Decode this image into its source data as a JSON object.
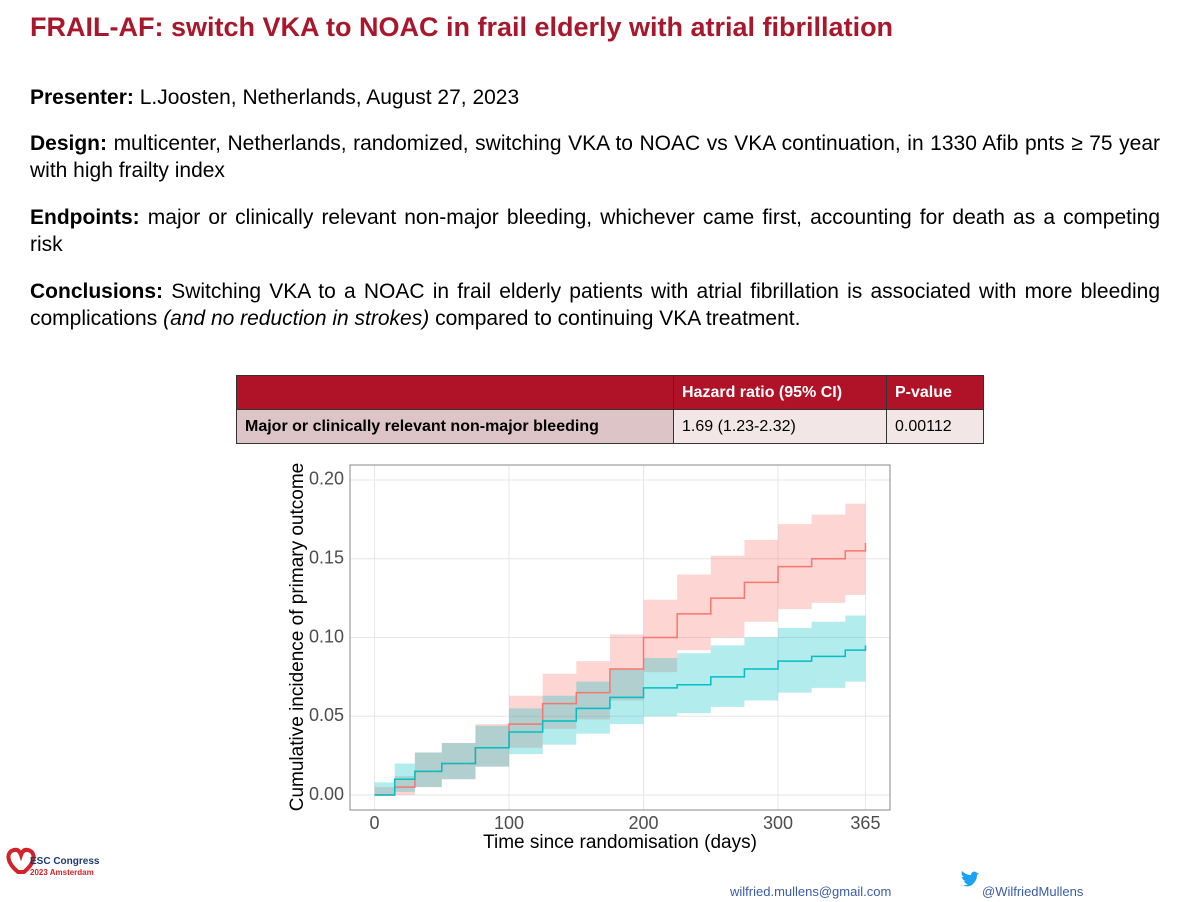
{
  "header": {
    "title": "FRAIL-AF: switch VKA to NOAC in frail elderly with atrial fibrillation"
  },
  "sections": [
    {
      "label": "Presenter:",
      "text": "L.Joosten, Netherlands, August 27, 2023"
    },
    {
      "label": "Design:",
      "text": "multicenter, Netherlands, randomized, switching VKA to NOAC vs VKA continuation, in 1330 Afib pnts ≥ 75 year with high frailty index"
    },
    {
      "label": "Endpoints:",
      "text": "major or clinically relevant non-major bleeding, whichever came first, accounting for death as a competing risk"
    },
    {
      "label": "Conclusions:",
      "text": "Switching VKA to a NOAC in frail elderly patients with atrial fibrillation is associated with more bleeding complications",
      "italic": "(and no reduction in strokes)",
      "text_after": "compared to continuing VKA treatment."
    }
  ],
  "table": {
    "header": [
      "Hazard ratio (95% CI)",
      "P-value"
    ],
    "rows": [
      [
        "Major or clinically relevant non-major bleeding",
        "1.69 (1.23-2.32)",
        "0.00112"
      ]
    ]
  },
  "chart_data": {
    "type": "step",
    "xlabel": "Time since randomisation (days)",
    "ylabel": "Cumulative incidence of primary outcome",
    "x": [
      0,
      15,
      30,
      50,
      75,
      100,
      125,
      150,
      175,
      200,
      225,
      250,
      275,
      300,
      325,
      350,
      365
    ],
    "series": [
      {
        "color": "#f8766d",
        "values": [
          0,
          0.005,
          0.015,
          0.02,
          0.03,
          0.045,
          0.058,
          0.065,
          0.08,
          0.1,
          0.115,
          0.125,
          0.135,
          0.145,
          0.15,
          0.155,
          0.16
        ],
        "lower": [
          0,
          0,
          0.005,
          0.01,
          0.018,
          0.03,
          0.042,
          0.048,
          0.06,
          0.078,
          0.092,
          0.1,
          0.11,
          0.118,
          0.122,
          0.127,
          0.13
        ],
        "upper": [
          0.005,
          0.012,
          0.027,
          0.033,
          0.045,
          0.063,
          0.077,
          0.085,
          0.102,
          0.124,
          0.14,
          0.152,
          0.162,
          0.172,
          0.178,
          0.185,
          0.19
        ]
      },
      {
        "color": "#00bfc4",
        "values": [
          0,
          0.01,
          0.015,
          0.02,
          0.03,
          0.04,
          0.047,
          0.055,
          0.062,
          0.068,
          0.07,
          0.075,
          0.08,
          0.085,
          0.088,
          0.092,
          0.095
        ],
        "lower": [
          0,
          0.002,
          0.005,
          0.01,
          0.018,
          0.026,
          0.032,
          0.039,
          0.045,
          0.05,
          0.052,
          0.056,
          0.06,
          0.065,
          0.068,
          0.072,
          0.075
        ],
        "upper": [
          0.008,
          0.02,
          0.027,
          0.033,
          0.044,
          0.055,
          0.063,
          0.072,
          0.08,
          0.087,
          0.09,
          0.095,
          0.1,
          0.106,
          0.11,
          0.114,
          0.12
        ]
      }
    ],
    "xlim": [
      -18.25,
      383.25
    ],
    "ylim": [
      -0.0095,
      0.2095
    ],
    "xticks": [
      0,
      100,
      200,
      300,
      365
    ],
    "yticks": [
      {
        "value": 0,
        "label": "0.00"
      },
      {
        "value": 0.05,
        "label": "0.05"
      },
      {
        "value": 0.1,
        "label": "0.10"
      },
      {
        "value": 0.15,
        "label": "0.15"
      },
      {
        "value": 0.2,
        "label": "0.20"
      }
    ],
    "grid": true
  },
  "footer": {
    "logo_line1": "ESC Congress",
    "logo_line2": "2023 Amsterdam",
    "email": "wilfried.mullens@gmail.com",
    "twitter": "@WilfriedMullens"
  }
}
